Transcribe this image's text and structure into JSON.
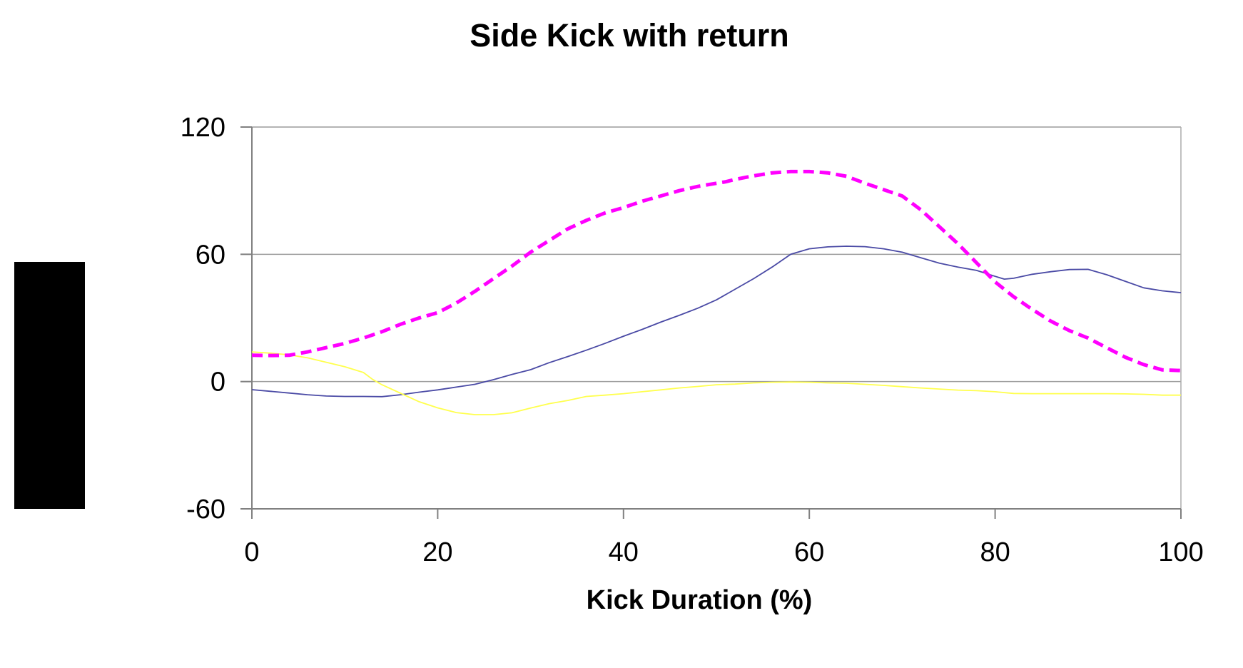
{
  "chart_data": {
    "type": "line",
    "title": "Side Kick with return",
    "xlabel": "Kick Duration (%)",
    "ylabel": "",
    "xlim": [
      0,
      100
    ],
    "ylim": [
      -60,
      120
    ],
    "x_ticks": [
      "0",
      "20",
      "40",
      "60",
      "80",
      "100"
    ],
    "x_tick_values": [
      0,
      20,
      40,
      60,
      80,
      100
    ],
    "y_ticks": [
      "120",
      "60",
      "0",
      "-60"
    ],
    "y_tick_values": [
      120,
      60,
      0,
      -60
    ],
    "gridline_values": [
      120,
      60,
      0
    ],
    "grid_on": true,
    "legend": "none",
    "axis_color": "#808080",
    "grid_color": "#9C9C9C",
    "border_color": "#ABABAB",
    "series": [
      {
        "name": "navy-solid-series",
        "style": "solid",
        "color": "#4A4AA5",
        "width": 1.8,
        "points": [
          [
            0,
            -3.8
          ],
          [
            2,
            -4.6
          ],
          [
            4,
            -5.4
          ],
          [
            6,
            -6.2
          ],
          [
            8,
            -6.8
          ],
          [
            10,
            -7
          ],
          [
            12,
            -7
          ],
          [
            14,
            -7.1
          ],
          [
            16,
            -6.2
          ],
          [
            18,
            -5
          ],
          [
            20,
            -3.9
          ],
          [
            22,
            -2.6
          ],
          [
            24,
            -1.3
          ],
          [
            26,
            0.9
          ],
          [
            28,
            3.4
          ],
          [
            30,
            5.6
          ],
          [
            32,
            8.9
          ],
          [
            34,
            11.8
          ],
          [
            36,
            14.8
          ],
          [
            38,
            18
          ],
          [
            40,
            21.4
          ],
          [
            42,
            24.6
          ],
          [
            44,
            28
          ],
          [
            46,
            31.2
          ],
          [
            48,
            34.6
          ],
          [
            50,
            38.5
          ],
          [
            52,
            43.5
          ],
          [
            54,
            48.5
          ],
          [
            56,
            54
          ],
          [
            58,
            60
          ],
          [
            60,
            62.6
          ],
          [
            62,
            63.5
          ],
          [
            64,
            63.8
          ],
          [
            66,
            63.6
          ],
          [
            68,
            62.6
          ],
          [
            70,
            61
          ],
          [
            72,
            58.4
          ],
          [
            74,
            55.8
          ],
          [
            76,
            54
          ],
          [
            78,
            52.4
          ],
          [
            80,
            49.6
          ],
          [
            81,
            48.3
          ],
          [
            82,
            48.7
          ],
          [
            84,
            50.6
          ],
          [
            86,
            51.8
          ],
          [
            88,
            52.8
          ],
          [
            90,
            52.9
          ],
          [
            92,
            50.4
          ],
          [
            94,
            47.3
          ],
          [
            96,
            44.2
          ],
          [
            98,
            42.8
          ],
          [
            100,
            41.9
          ]
        ]
      },
      {
        "name": "yellow-solid-series",
        "style": "solid",
        "color": "#FFFF4D",
        "width": 1.8,
        "points": [
          [
            0,
            14
          ],
          [
            2,
            13.4
          ],
          [
            4,
            12.6
          ],
          [
            6,
            11.2
          ],
          [
            8,
            9.1
          ],
          [
            10,
            7
          ],
          [
            12,
            4.3
          ],
          [
            13,
            1
          ],
          [
            14,
            -1.5
          ],
          [
            16,
            -5.5
          ],
          [
            18,
            -9.5
          ],
          [
            20,
            -12.4
          ],
          [
            22,
            -14.6
          ],
          [
            24,
            -15.6
          ],
          [
            26,
            -15.6
          ],
          [
            28,
            -14.7
          ],
          [
            30,
            -12.5
          ],
          [
            32,
            -10.4
          ],
          [
            34,
            -8.9
          ],
          [
            36,
            -7
          ],
          [
            38,
            -6.4
          ],
          [
            40,
            -5.7
          ],
          [
            42,
            -4.8
          ],
          [
            44,
            -3.9
          ],
          [
            46,
            -3
          ],
          [
            48,
            -2.3
          ],
          [
            50,
            -1.5
          ],
          [
            52,
            -1.2
          ],
          [
            54,
            -0.6
          ],
          [
            56,
            -0.3
          ],
          [
            58,
            -0.2
          ],
          [
            60,
            -0.3
          ],
          [
            62,
            -0.6
          ],
          [
            64,
            -0.8
          ],
          [
            66,
            -1.3
          ],
          [
            68,
            -1.8
          ],
          [
            70,
            -2.4
          ],
          [
            72,
            -3
          ],
          [
            74,
            -3.5
          ],
          [
            76,
            -4
          ],
          [
            78,
            -4.3
          ],
          [
            80,
            -4.8
          ],
          [
            82,
            -5.6
          ],
          [
            84,
            -5.7
          ],
          [
            86,
            -5.7
          ],
          [
            88,
            -5.7
          ],
          [
            90,
            -5.7
          ],
          [
            92,
            -5.7
          ],
          [
            94,
            -5.8
          ],
          [
            96,
            -6
          ],
          [
            98,
            -6.4
          ],
          [
            100,
            -6.4
          ]
        ]
      },
      {
        "name": "magenta-dashed-series",
        "style": "dashed",
        "color": "#FF00FF",
        "width": 5,
        "points": [
          [
            0,
            12.4
          ],
          [
            2,
            12.3
          ],
          [
            4,
            12.4
          ],
          [
            6,
            14
          ],
          [
            8,
            16
          ],
          [
            10,
            18
          ],
          [
            12,
            20.5
          ],
          [
            14,
            23.5
          ],
          [
            16,
            27
          ],
          [
            18,
            30
          ],
          [
            20,
            32.5
          ],
          [
            22,
            37
          ],
          [
            24,
            42.5
          ],
          [
            26,
            48.5
          ],
          [
            28,
            54.5
          ],
          [
            30,
            61
          ],
          [
            32,
            66.5
          ],
          [
            34,
            72
          ],
          [
            36,
            76
          ],
          [
            38,
            79.5
          ],
          [
            40,
            82
          ],
          [
            42,
            85
          ],
          [
            44,
            87.5
          ],
          [
            46,
            90
          ],
          [
            48,
            92
          ],
          [
            50,
            93.5
          ],
          [
            51,
            94.2
          ],
          [
            52,
            95.3
          ],
          [
            54,
            97
          ],
          [
            56,
            98.4
          ],
          [
            58,
            99
          ],
          [
            60,
            99
          ],
          [
            62,
            98.4
          ],
          [
            64,
            96.8
          ],
          [
            66,
            93.5
          ],
          [
            68,
            90.5
          ],
          [
            70,
            87.5
          ],
          [
            72,
            81
          ],
          [
            74,
            73
          ],
          [
            76,
            65
          ],
          [
            78,
            56
          ],
          [
            80,
            47
          ],
          [
            82,
            40
          ],
          [
            84,
            34
          ],
          [
            86,
            28.5
          ],
          [
            88,
            24
          ],
          [
            90,
            20.5
          ],
          [
            92,
            16
          ],
          [
            94,
            11.5
          ],
          [
            96,
            8
          ],
          [
            98,
            5.5
          ],
          [
            100,
            5.2
          ]
        ]
      }
    ]
  },
  "annotations": {
    "black_box_present": true
  }
}
